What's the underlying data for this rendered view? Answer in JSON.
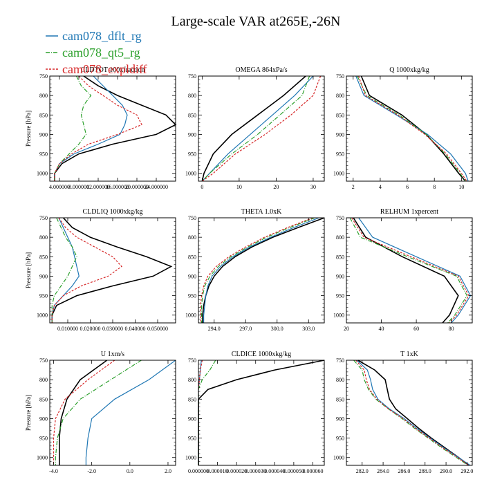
{
  "figure_title": "Large-scale VAR at265E,-26N",
  "legend": [
    {
      "label": "cam078_dflt_rg",
      "color": "#1f77b4",
      "dash": "none"
    },
    {
      "label": "cam078_qt5_rg",
      "color": "#2ca02c",
      "dash": "6,2,1,2"
    },
    {
      "label": "cam078_expldiff",
      "color": "#d62728",
      "dash": "3,2"
    },
    {
      "label": "",
      "color": "#000000",
      "dash": "none"
    }
  ],
  "chart_data": [
    {
      "type": "line",
      "title": "CLDTOT 100xfraction",
      "ylabel": "Pressure [hPa]",
      "ylim": [
        750,
        1020
      ],
      "yticks": [
        750,
        800,
        850,
        900,
        950,
        1000
      ],
      "xlim": [
        0.02,
        0.28
      ],
      "xticks": [
        0.04,
        0.08,
        0.12,
        0.16,
        0.2,
        0.24
      ],
      "xticklabels": [
        "4.000000",
        "8.000000",
        "12.000000",
        "16.000000",
        "20.000000",
        "24.000000"
      ],
      "pressure": [
        750,
        775,
        800,
        825,
        850,
        875,
        900,
        925,
        950,
        975,
        1000,
        1020
      ],
      "series": [
        {
          "name": "cam078_dflt_rg",
          "x": [
            0.11,
            0.13,
            0.15,
            0.17,
            0.18,
            0.175,
            0.165,
            0.12,
            0.07,
            0.04,
            0.03,
            0.03
          ]
        },
        {
          "name": "cam078_qt5_rg",
          "x": [
            0.075,
            0.085,
            0.105,
            0.09,
            0.085,
            0.09,
            0.095,
            0.08,
            0.06,
            0.04,
            0.03,
            0.03
          ]
        },
        {
          "name": "cam078_expldiff",
          "x": [
            0.08,
            0.1,
            0.13,
            0.16,
            0.2,
            0.21,
            0.16,
            0.1,
            0.065,
            0.04,
            0.03,
            0.03
          ]
        },
        {
          "name": "",
          "x": [
            0.09,
            0.12,
            0.16,
            0.21,
            0.26,
            0.28,
            0.24,
            0.15,
            0.08,
            0.045,
            0.03,
            0.03
          ]
        }
      ]
    },
    {
      "type": "line",
      "title": "OMEGA  864xPa/s",
      "ylabel": "",
      "ylim": [
        750,
        1020
      ],
      "yticks": [
        750,
        800,
        850,
        900,
        950,
        1000
      ],
      "xlim": [
        -1,
        33
      ],
      "xticks": [
        0,
        10,
        20,
        30
      ],
      "xticklabels": [
        "0",
        "10",
        "20",
        "30"
      ],
      "pressure": [
        750,
        800,
        850,
        900,
        950,
        1000,
        1020
      ],
      "series": [
        {
          "name": "cam078_dflt_rg",
          "x": [
            30,
            25,
            19,
            13,
            7,
            2,
            0
          ]
        },
        {
          "name": "cam078_qt5_rg",
          "x": [
            29,
            27,
            21,
            15,
            8,
            2,
            0
          ]
        },
        {
          "name": "cam078_expldiff",
          "x": [
            32,
            30,
            24,
            17,
            9,
            3,
            0
          ]
        },
        {
          "name": "",
          "x": [
            28,
            22,
            15,
            8,
            3,
            0.5,
            0
          ]
        }
      ]
    },
    {
      "type": "line",
      "title": "Q  1000xkg/kg",
      "ylabel": "",
      "ylim": [
        750,
        1020
      ],
      "yticks": [
        750,
        800,
        850,
        900,
        950,
        1000
      ],
      "xlim": [
        1.5,
        10.8
      ],
      "xticks": [
        2,
        4,
        6,
        8,
        10
      ],
      "xticklabels": [
        "2",
        "4",
        "6",
        "8",
        "10"
      ],
      "pressure": [
        750,
        800,
        850,
        900,
        950,
        1000,
        1020
      ],
      "series": [
        {
          "name": "cam078_dflt_rg",
          "x": [
            2.2,
            2.8,
            5.2,
            7.5,
            9.2,
            10.3,
            10.5
          ]
        },
        {
          "name": "cam078_qt5_rg",
          "x": [
            2.3,
            3.0,
            5.4,
            7.4,
            8.8,
            9.9,
            10.3
          ]
        },
        {
          "name": "cam078_expldiff",
          "x": [
            2.4,
            2.9,
            5.3,
            7.3,
            8.9,
            10.0,
            10.4
          ]
        },
        {
          "name": "",
          "x": [
            2.6,
            3.2,
            5.6,
            7.4,
            8.7,
            9.8,
            10.3
          ]
        }
      ]
    },
    {
      "type": "line",
      "title": "CLDLIQ  1000xkg/kg",
      "ylabel": "Pressure [hPa]",
      "ylim": [
        750,
        1020
      ],
      "yticks": [
        750,
        800,
        850,
        900,
        950,
        1000
      ],
      "xlim": [
        0.002,
        0.058
      ],
      "xticks": [
        0.01,
        0.02,
        0.03,
        0.04,
        0.05
      ],
      "xticklabels": [
        "0.010000",
        "0.020000",
        "0.030000",
        "0.040000",
        "0.050000"
      ],
      "pressure": [
        750,
        775,
        800,
        825,
        850,
        875,
        900,
        925,
        950,
        975,
        1000,
        1020
      ],
      "series": [
        {
          "name": "cam078_dflt_rg",
          "x": [
            0.006,
            0.008,
            0.01,
            0.012,
            0.013,
            0.014,
            0.015,
            0.012,
            0.008,
            0.004,
            0.003,
            0.003
          ]
        },
        {
          "name": "cam078_qt5_rg",
          "x": [
            0.005,
            0.007,
            0.009,
            0.012,
            0.014,
            0.012,
            0.01,
            0.007,
            0.004,
            0.003,
            0.003,
            0.003
          ]
        },
        {
          "name": "cam078_expldiff",
          "x": [
            0.006,
            0.009,
            0.014,
            0.022,
            0.03,
            0.034,
            0.028,
            0.016,
            0.008,
            0.004,
            0.003,
            0.003
          ]
        },
        {
          "name": "",
          "x": [
            0.008,
            0.012,
            0.02,
            0.032,
            0.045,
            0.056,
            0.048,
            0.03,
            0.014,
            0.005,
            0.003,
            0.003
          ]
        }
      ]
    },
    {
      "type": "line",
      "title": "THETA  1.0xK",
      "ylabel": "",
      "ylim": [
        750,
        1020
      ],
      "yticks": [
        750,
        800,
        850,
        900,
        950,
        1000
      ],
      "xlim": [
        292.5,
        304.5
      ],
      "xticks": [
        294.0,
        297.0,
        300.0,
        303.0
      ],
      "xticklabels": [
        "294.0",
        "297.0",
        "300.0",
        "303.0"
      ],
      "pressure": [
        750,
        775,
        800,
        825,
        850,
        875,
        900,
        925,
        950,
        975,
        1000,
        1020
      ],
      "series": [
        {
          "name": "cam078_dflt_rg",
          "x": [
            304.0,
            301.6,
            299.4,
            297.4,
            295.8,
            294.6,
            293.8,
            293.4,
            293.2,
            293.1,
            293.0,
            293.0
          ]
        },
        {
          "name": "cam078_qt5_rg",
          "x": [
            303.6,
            301.2,
            299.0,
            297.2,
            295.6,
            294.4,
            293.6,
            293.1,
            292.9,
            292.8,
            292.8,
            292.8
          ]
        },
        {
          "name": "cam078_expldiff",
          "x": [
            303.4,
            301.0,
            298.8,
            297.0,
            295.4,
            294.2,
            293.4,
            293.0,
            292.8,
            292.7,
            292.7,
            292.7
          ]
        },
        {
          "name": "",
          "x": [
            304.5,
            302.0,
            299.6,
            297.6,
            296.0,
            294.8,
            294.0,
            293.5,
            293.2,
            293.0,
            292.9,
            292.9
          ]
        }
      ]
    },
    {
      "type": "line",
      "title": "RELHUM  1xpercent",
      "ylabel": "",
      "ylim": [
        750,
        1020
      ],
      "yticks": [
        750,
        800,
        850,
        900,
        950,
        1000
      ],
      "xlim": [
        20,
        92
      ],
      "xticks": [
        20,
        40,
        60,
        80
      ],
      "xticklabels": [
        "20",
        "40",
        "60",
        "80"
      ],
      "pressure": [
        750,
        800,
        850,
        900,
        950,
        1000,
        1020
      ],
      "series": [
        {
          "name": "cam078_dflt_rg",
          "x": [
            27,
            35,
            60,
            85,
            91,
            84,
            80
          ]
        },
        {
          "name": "cam078_qt5_rg",
          "x": [
            22,
            28,
            55,
            83,
            89,
            82,
            78
          ]
        },
        {
          "name": "cam078_expldiff",
          "x": [
            23,
            30,
            57,
            84,
            90,
            83,
            79
          ]
        },
        {
          "name": "",
          "x": [
            24,
            31,
            52,
            76,
            84,
            79,
            75
          ]
        }
      ]
    },
    {
      "type": "line",
      "title": "U  1xm/s",
      "ylabel": "Pressure [hPa]",
      "ylim": [
        750,
        1020
      ],
      "yticks": [
        750,
        800,
        850,
        900,
        950,
        1000
      ],
      "xlim": [
        -4.2,
        2.4
      ],
      "xticks": [
        -4.0,
        -2.0,
        0.0,
        2.0
      ],
      "xticklabels": [
        "-4.0",
        "-2.0",
        "0.0",
        "2.0"
      ],
      "pressure": [
        750,
        800,
        850,
        900,
        950,
        1000,
        1020
      ],
      "series": [
        {
          "name": "cam078_dflt_rg",
          "x": [
            2.4,
            1.0,
            -0.8,
            -2.0,
            -2.2,
            -2.3,
            -2.3
          ]
        },
        {
          "name": "cam078_qt5_rg",
          "x": [
            0.6,
            -1.0,
            -2.6,
            -3.5,
            -3.8,
            -3.9,
            -3.9
          ]
        },
        {
          "name": "cam078_expldiff",
          "x": [
            -0.8,
            -2.2,
            -3.4,
            -3.9,
            -4.0,
            -4.0,
            -4.0
          ]
        },
        {
          "name": "",
          "x": [
            -1.2,
            -2.6,
            -3.3,
            -3.6,
            -3.7,
            -3.7,
            -3.7
          ]
        }
      ]
    },
    {
      "type": "line",
      "title": "CLDICE  1000xkg/kg",
      "ylabel": "",
      "ylim": [
        750,
        1020
      ],
      "yticks": [
        750,
        800,
        850,
        900,
        950,
        1000
      ],
      "xlim": [
        0.0,
        6.6e-05
      ],
      "xticks": [
        0.0,
        1e-05,
        2e-05,
        3e-05,
        4e-05,
        5e-05,
        6e-05
      ],
      "xticklabels": [
        "0.000000",
        "0.000010",
        "0.000020",
        "0.000030",
        "0.000040",
        "0.000050",
        "0.000060"
      ],
      "pressure": [
        750,
        775,
        800,
        825,
        850,
        875,
        900,
        1000,
        1020
      ],
      "series": [
        {
          "name": "cam078_dflt_rg",
          "x": [
            1.5e-06,
            1e-06,
            5e-07,
            0.0,
            0.0,
            0.0,
            0.0,
            0.0,
            0.0
          ]
        },
        {
          "name": "cam078_qt5_rg",
          "x": [
            9e-06,
            6e-06,
            2e-06,
            0.0,
            0.0,
            0.0,
            0.0,
            0.0,
            0.0
          ]
        },
        {
          "name": "cam078_expldiff",
          "x": [
            2e-06,
            1e-06,
            5e-07,
            0.0,
            0.0,
            0.0,
            0.0,
            0.0,
            0.0
          ]
        },
        {
          "name": "",
          "x": [
            6.6e-05,
            4e-05,
            2e-05,
            5e-06,
            0.0,
            0.0,
            0.0,
            0.0,
            0.0
          ]
        }
      ]
    },
    {
      "type": "line",
      "title": "T  1xK",
      "ylabel": "",
      "ylim": [
        750,
        1020
      ],
      "yticks": [
        750,
        800,
        850,
        900,
        950,
        1000
      ],
      "xlim": [
        280.5,
        292.5
      ],
      "xticks": [
        282.0,
        284.0,
        286.0,
        288.0,
        290.0,
        292.0
      ],
      "xticklabels": [
        "282.0",
        "284.0",
        "286.0",
        "288.0",
        "290.0",
        "292.0"
      ],
      "pressure": [
        750,
        775,
        800,
        825,
        850,
        875,
        900,
        925,
        950,
        975,
        1000,
        1020
      ],
      "series": [
        {
          "name": "cam078_dflt_rg",
          "x": [
            281.5,
            282.5,
            282.8,
            283.0,
            283.5,
            284.6,
            286.0,
            287.2,
            288.5,
            289.8,
            291.2,
            292.3
          ]
        },
        {
          "name": "cam078_qt5_rg",
          "x": [
            281.2,
            282.0,
            282.2,
            282.6,
            283.3,
            284.5,
            285.8,
            287.0,
            288.3,
            289.6,
            291.0,
            292.1
          ]
        },
        {
          "name": "cam078_expldiff",
          "x": [
            281.4,
            282.2,
            282.4,
            282.7,
            283.4,
            284.5,
            285.9,
            287.1,
            288.4,
            289.7,
            291.1,
            292.2
          ]
        },
        {
          "name": "",
          "x": [
            281.6,
            283.2,
            284.2,
            284.4,
            284.6,
            285.2,
            286.3,
            287.4,
            288.6,
            289.9,
            291.2,
            292.2
          ]
        }
      ]
    }
  ]
}
